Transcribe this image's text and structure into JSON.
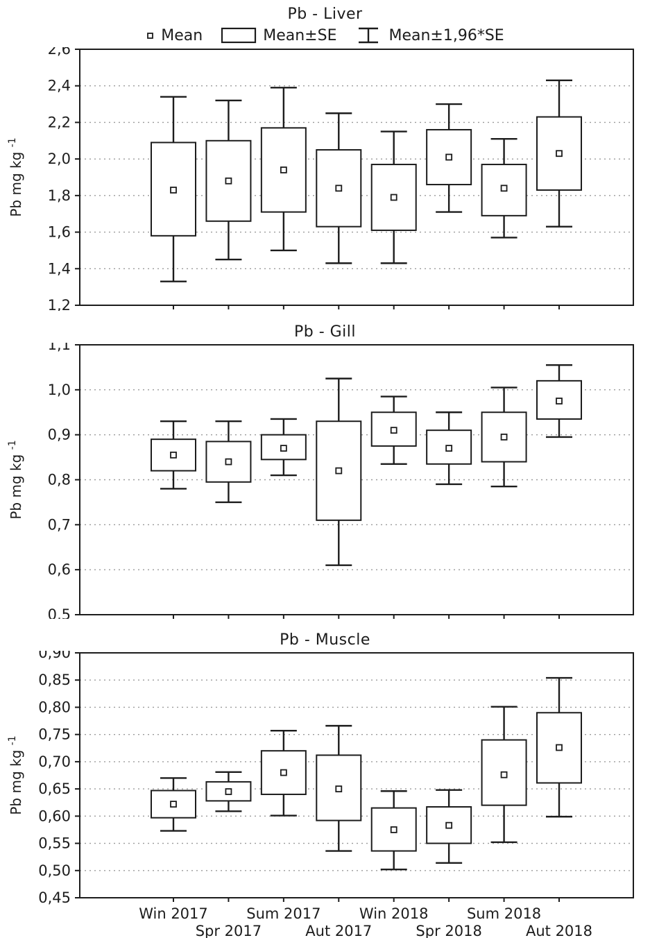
{
  "figure": {
    "background": "#ffffff",
    "line_color": "#1c1c1c",
    "grid_color": "#9a9a9a"
  },
  "legend": {
    "mean_label": "Mean",
    "se_label": "Mean±SE",
    "ci_label": "Mean±1,96*SE"
  },
  "x_axis": {
    "categories": [
      "Win 2017",
      "Spr 2017",
      "Sum 2017",
      "Aut 2017",
      "Win 2018",
      "Spr 2018",
      "Sum 2018",
      "Aut 2018"
    ],
    "row1": [
      "Win 2017",
      "Sum 2017",
      "Win 2018",
      "Sum 2018"
    ],
    "row2": [
      "Spr 2017",
      "Aut 2017",
      "Spr 2018",
      "Aut 2018"
    ]
  },
  "chart_data": [
    {
      "type": "box",
      "title": "Pb - Liver",
      "xlabel": "",
      "ylabel": "Pb mg kg",
      "ylabel_sup": "-1",
      "ylim": [
        1.2,
        2.6
      ],
      "yticks": [
        1.2,
        1.4,
        1.6,
        1.8,
        2.0,
        2.2,
        2.4,
        2.6
      ],
      "ytick_labels": [
        "1,2",
        "1,4",
        "1,6",
        "1,8",
        "2,0",
        "2,2",
        "2,4",
        "2,6"
      ],
      "grid": "dotted-horizontal",
      "legend_position": "top",
      "legend_entries": [
        "Mean",
        "Mean±SE",
        "Mean±1,96*SE"
      ],
      "categories": [
        "Win 2017",
        "Spr 2017",
        "Sum 2017",
        "Aut 2017",
        "Win 2018",
        "Spr 2018",
        "Sum 2018",
        "Aut 2018"
      ],
      "series": [
        {
          "category": "Win 2017",
          "mean": 1.83,
          "se_low": 1.58,
          "se_high": 2.09,
          "ci_low": 1.33,
          "ci_high": 2.34
        },
        {
          "category": "Spr 2017",
          "mean": 1.88,
          "se_low": 1.66,
          "se_high": 2.1,
          "ci_low": 1.45,
          "ci_high": 2.32
        },
        {
          "category": "Sum 2017",
          "mean": 1.94,
          "se_low": 1.71,
          "se_high": 2.17,
          "ci_low": 1.5,
          "ci_high": 2.39
        },
        {
          "category": "Aut 2017",
          "mean": 1.84,
          "se_low": 1.63,
          "se_high": 2.05,
          "ci_low": 1.43,
          "ci_high": 2.25
        },
        {
          "category": "Win 2018",
          "mean": 1.79,
          "se_low": 1.61,
          "se_high": 1.97,
          "ci_low": 1.43,
          "ci_high": 2.15
        },
        {
          "category": "Spr 2018",
          "mean": 2.01,
          "se_low": 1.86,
          "se_high": 2.16,
          "ci_low": 1.71,
          "ci_high": 2.3
        },
        {
          "category": "Sum 2018",
          "mean": 1.84,
          "se_low": 1.69,
          "se_high": 1.97,
          "ci_low": 1.57,
          "ci_high": 2.11
        },
        {
          "category": "Aut 2018",
          "mean": 2.03,
          "se_low": 1.83,
          "se_high": 2.23,
          "ci_low": 1.63,
          "ci_high": 2.43
        }
      ],
      "show_x_labels": false
    },
    {
      "type": "box",
      "title": "Pb - Gill",
      "xlabel": "",
      "ylabel": "Pb mg kg",
      "ylabel_sup": "-1",
      "ylim": [
        0.5,
        1.1
      ],
      "yticks": [
        0.5,
        0.6,
        0.7,
        0.8,
        0.9,
        1.0,
        1.1
      ],
      "ytick_labels": [
        "0,5",
        "0,6",
        "0,7",
        "0,8",
        "0,9",
        "1,0",
        "1,1"
      ],
      "grid": "dotted-horizontal",
      "legend_position": "none",
      "legend_entries": [
        "Mean",
        "Mean±SE",
        "Mean±1,96*SE"
      ],
      "categories": [
        "Win 2017",
        "Spr 2017",
        "Sum 2017",
        "Aut 2017",
        "Win 2018",
        "Spr 2018",
        "Sum 2018",
        "Aut 2018"
      ],
      "series": [
        {
          "category": "Win 2017",
          "mean": 0.855,
          "se_low": 0.82,
          "se_high": 0.89,
          "ci_low": 0.78,
          "ci_high": 0.93
        },
        {
          "category": "Spr 2017",
          "mean": 0.84,
          "se_low": 0.795,
          "se_high": 0.885,
          "ci_low": 0.75,
          "ci_high": 0.93
        },
        {
          "category": "Sum 2017",
          "mean": 0.87,
          "se_low": 0.845,
          "se_high": 0.9,
          "ci_low": 0.81,
          "ci_high": 0.935
        },
        {
          "category": "Aut 2017",
          "mean": 0.82,
          "se_low": 0.71,
          "se_high": 0.93,
          "ci_low": 0.61,
          "ci_high": 1.025
        },
        {
          "category": "Win 2018",
          "mean": 0.91,
          "se_low": 0.875,
          "se_high": 0.95,
          "ci_low": 0.835,
          "ci_high": 0.985
        },
        {
          "category": "Spr 2018",
          "mean": 0.87,
          "se_low": 0.835,
          "se_high": 0.91,
          "ci_low": 0.79,
          "ci_high": 0.95
        },
        {
          "category": "Sum 2018",
          "mean": 0.895,
          "se_low": 0.84,
          "se_high": 0.95,
          "ci_low": 0.785,
          "ci_high": 1.005
        },
        {
          "category": "Aut 2018",
          "mean": 0.975,
          "se_low": 0.935,
          "se_high": 1.02,
          "ci_low": 0.895,
          "ci_high": 1.055
        }
      ],
      "show_x_labels": false
    },
    {
      "type": "box",
      "title": "Pb - Muscle",
      "xlabel": "",
      "ylabel": "Pb mg kg",
      "ylabel_sup": "-1",
      "ylim": [
        0.45,
        0.9
      ],
      "yticks": [
        0.45,
        0.5,
        0.55,
        0.6,
        0.65,
        0.7,
        0.75,
        0.8,
        0.85,
        0.9
      ],
      "ytick_labels": [
        "0,45",
        "0,50",
        "0,55",
        "0,60",
        "0,65",
        "0,70",
        "0,75",
        "0,80",
        "0,85",
        "0,90"
      ],
      "grid": "dotted-horizontal",
      "legend_position": "none",
      "legend_entries": [
        "Mean",
        "Mean±SE",
        "Mean±1,96*SE"
      ],
      "categories": [
        "Win 2017",
        "Spr 2017",
        "Sum 2017",
        "Aut 2017",
        "Win 2018",
        "Spr 2018",
        "Sum 2018",
        "Aut 2018"
      ],
      "series": [
        {
          "category": "Win 2017",
          "mean": 0.622,
          "se_low": 0.597,
          "se_high": 0.647,
          "ci_low": 0.573,
          "ci_high": 0.67
        },
        {
          "category": "Spr 2017",
          "mean": 0.645,
          "se_low": 0.628,
          "se_high": 0.663,
          "ci_low": 0.609,
          "ci_high": 0.681
        },
        {
          "category": "Sum 2017",
          "mean": 0.68,
          "se_low": 0.64,
          "se_high": 0.72,
          "ci_low": 0.601,
          "ci_high": 0.757
        },
        {
          "category": "Aut 2017",
          "mean": 0.65,
          "se_low": 0.592,
          "se_high": 0.712,
          "ci_low": 0.536,
          "ci_high": 0.766
        },
        {
          "category": "Win 2018",
          "mean": 0.575,
          "se_low": 0.536,
          "se_high": 0.615,
          "ci_low": 0.502,
          "ci_high": 0.646
        },
        {
          "category": "Spr 2018",
          "mean": 0.583,
          "se_low": 0.55,
          "se_high": 0.617,
          "ci_low": 0.514,
          "ci_high": 0.648
        },
        {
          "category": "Sum 2018",
          "mean": 0.676,
          "se_low": 0.62,
          "se_high": 0.74,
          "ci_low": 0.552,
          "ci_high": 0.801
        },
        {
          "category": "Aut 2018",
          "mean": 0.726,
          "se_low": 0.661,
          "se_high": 0.79,
          "ci_low": 0.599,
          "ci_high": 0.854
        }
      ],
      "show_x_labels": true
    }
  ]
}
